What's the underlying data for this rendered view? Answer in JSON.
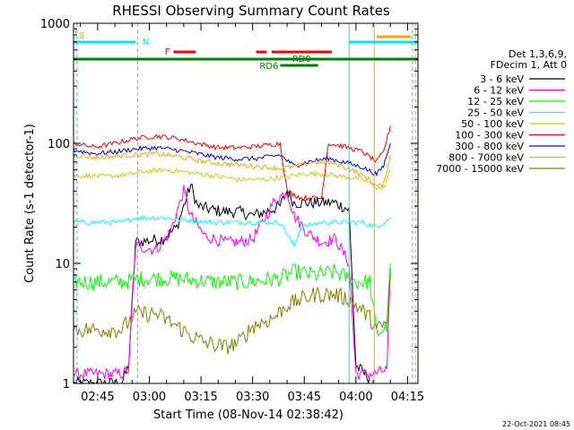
{
  "chart_data": {
    "type": "line",
    "title": "RHESSI Observing Summary Count Rates",
    "xlabel": "Start Time (08-Nov-14 02:38:42)",
    "ylabel": "Count Rate (s-1 detector-1)",
    "x_scale": "time",
    "y_scale": "log",
    "xlim_min": [
      0,
      100
    ],
    "ylim": [
      1,
      1000
    ],
    "x_ticks_min": [
      7,
      22,
      37,
      52,
      67,
      82,
      97
    ],
    "x_tick_labels": [
      "02:45",
      "03:00",
      "03:15",
      "03:30",
      "03:45",
      "04:00",
      "04:15"
    ],
    "y_ticks": [
      1,
      10,
      100,
      1000
    ],
    "y_tick_labels": [
      "1",
      "10",
      "100",
      "1000"
    ],
    "date_stamp": "22-Oct-2021 08:45",
    "legend": {
      "placement": "right",
      "header_lines": [
        "Det 1,3,6,9,",
        "FDecim 1, Att 0"
      ]
    },
    "flags": [
      {
        "label": "I",
        "color": "#ffa500"
      },
      {
        "label": "S",
        "color": "#ffa500"
      },
      {
        "label": "N",
        "color": "#00e5ee"
      },
      {
        "label": "F",
        "color": "#ff0000"
      },
      {
        "label": "RD0",
        "color": "#008000"
      },
      {
        "label": "RD6",
        "color": "#008000"
      }
    ],
    "series": [
      {
        "name": "3 - 6 keV",
        "color": "#000000",
        "points": [
          [
            0,
            1
          ],
          [
            14,
            1
          ],
          [
            16,
            1.4
          ],
          [
            18,
            15
          ],
          [
            26,
            16
          ],
          [
            30,
            20
          ],
          [
            34,
            45
          ],
          [
            36,
            30
          ],
          [
            40,
            28
          ],
          [
            44,
            27
          ],
          [
            48,
            27
          ],
          [
            52,
            25
          ],
          [
            56,
            27
          ],
          [
            60,
            30
          ],
          [
            62,
            40
          ],
          [
            64,
            32
          ],
          [
            68,
            32
          ],
          [
            72,
            32
          ],
          [
            76,
            32
          ],
          [
            80,
            28
          ],
          [
            82,
            1.4
          ],
          [
            86,
            1.1
          ]
        ]
      },
      {
        "name": "6 - 12 keV",
        "color": "#ff00ff",
        "points": [
          [
            0,
            1.2
          ],
          [
            14,
            1.2
          ],
          [
            16,
            1.3
          ],
          [
            18,
            14
          ],
          [
            24,
            13
          ],
          [
            28,
            18
          ],
          [
            32,
            40
          ],
          [
            34,
            25
          ],
          [
            38,
            17
          ],
          [
            44,
            15
          ],
          [
            48,
            15
          ],
          [
            52,
            16
          ],
          [
            56,
            25
          ],
          [
            58,
            32
          ],
          [
            62,
            40
          ],
          [
            64,
            25
          ],
          [
            68,
            18
          ],
          [
            72,
            15
          ],
          [
            76,
            16
          ],
          [
            80,
            10
          ],
          [
            82,
            1.2
          ],
          [
            87,
            1.2
          ],
          [
            91,
            1.3
          ],
          [
            92,
            9
          ]
        ]
      },
      {
        "name": "12 - 25 keV",
        "color": "#00ff00",
        "points": [
          [
            0,
            7
          ],
          [
            14,
            7
          ],
          [
            20,
            7.5
          ],
          [
            30,
            7.5
          ],
          [
            40,
            7
          ],
          [
            50,
            7
          ],
          [
            60,
            7.5
          ],
          [
            64,
            8.5
          ],
          [
            70,
            8
          ],
          [
            76,
            8.5
          ],
          [
            82,
            7
          ],
          [
            86,
            7
          ],
          [
            88,
            2.6
          ],
          [
            91,
            3
          ],
          [
            92,
            10
          ]
        ]
      },
      {
        "name": "25 - 50 keV",
        "color": "#00ffff",
        "points": [
          [
            0,
            22
          ],
          [
            14,
            22
          ],
          [
            18,
            24
          ],
          [
            26,
            24
          ],
          [
            32,
            23
          ],
          [
            40,
            22
          ],
          [
            50,
            22
          ],
          [
            60,
            22
          ],
          [
            64,
            14
          ],
          [
            66,
            20
          ],
          [
            72,
            22
          ],
          [
            78,
            22
          ],
          [
            84,
            22
          ],
          [
            88,
            20
          ],
          [
            92,
            24
          ]
        ]
      },
      {
        "name": "50 - 100 keV",
        "color": "#cccc00",
        "points": [
          [
            0,
            54
          ],
          [
            10,
            53
          ],
          [
            16,
            55
          ],
          [
            20,
            58
          ],
          [
            26,
            60
          ],
          [
            32,
            58
          ],
          [
            40,
            54
          ],
          [
            48,
            50
          ],
          [
            56,
            50
          ],
          [
            62,
            53
          ],
          [
            68,
            56
          ],
          [
            74,
            55
          ],
          [
            80,
            52
          ],
          [
            84,
            50
          ],
          [
            88,
            43
          ],
          [
            90,
            42
          ],
          [
            92,
            60
          ]
        ]
      },
      {
        "name": "100 - 300 keV",
        "color": "#ff0000",
        "points": [
          [
            0,
            100
          ],
          [
            6,
            93
          ],
          [
            12,
            100
          ],
          [
            18,
            110
          ],
          [
            24,
            115
          ],
          [
            30,
            110
          ],
          [
            36,
            100
          ],
          [
            42,
            92
          ],
          [
            48,
            92
          ],
          [
            54,
            95
          ],
          [
            60,
            100
          ],
          [
            62,
            40
          ],
          [
            66,
            35
          ],
          [
            72,
            35
          ],
          [
            74,
            100
          ],
          [
            78,
            95
          ],
          [
            84,
            85
          ],
          [
            88,
            70
          ],
          [
            90,
            85
          ],
          [
            92,
            140
          ]
        ]
      },
      {
        "name": "300 - 800 keV",
        "color": "#0000ff",
        "points": [
          [
            0,
            88
          ],
          [
            6,
            82
          ],
          [
            12,
            85
          ],
          [
            18,
            90
          ],
          [
            24,
            92
          ],
          [
            30,
            88
          ],
          [
            36,
            82
          ],
          [
            42,
            76
          ],
          [
            48,
            74
          ],
          [
            54,
            75
          ],
          [
            60,
            80
          ],
          [
            64,
            65
          ],
          [
            68,
            70
          ],
          [
            74,
            75
          ],
          [
            80,
            68
          ],
          [
            84,
            63
          ],
          [
            88,
            55
          ],
          [
            90,
            65
          ],
          [
            92,
            100
          ]
        ]
      },
      {
        "name": "800 - 7000 keV",
        "color": "#ffa500",
        "points": [
          [
            0,
            80
          ],
          [
            6,
            76
          ],
          [
            12,
            78
          ],
          [
            18,
            80
          ],
          [
            24,
            82
          ],
          [
            30,
            78
          ],
          [
            36,
            72
          ],
          [
            42,
            68
          ],
          [
            48,
            66
          ],
          [
            54,
            64
          ],
          [
            60,
            62
          ],
          [
            64,
            64
          ],
          [
            70,
            70
          ],
          [
            76,
            68
          ],
          [
            82,
            58
          ],
          [
            86,
            50
          ],
          [
            88,
            44
          ],
          [
            90,
            45
          ],
          [
            92,
            80
          ]
        ]
      },
      {
        "name": "7000 - 15000 keV",
        "color": "#808000",
        "points": [
          [
            0,
            2.8
          ],
          [
            14,
            2.8
          ],
          [
            18,
            3.8
          ],
          [
            24,
            3.8
          ],
          [
            30,
            3
          ],
          [
            34,
            2.5
          ],
          [
            38,
            2.2
          ],
          [
            44,
            2
          ],
          [
            48,
            2.2
          ],
          [
            52,
            3
          ],
          [
            58,
            3.5
          ],
          [
            62,
            4.5
          ],
          [
            66,
            5
          ],
          [
            70,
            5.5
          ],
          [
            76,
            5.5
          ],
          [
            80,
            5
          ],
          [
            84,
            4
          ],
          [
            86,
            3.5
          ],
          [
            88,
            2.8
          ],
          [
            91,
            3.2
          ],
          [
            92,
            8
          ]
        ]
      }
    ]
  }
}
